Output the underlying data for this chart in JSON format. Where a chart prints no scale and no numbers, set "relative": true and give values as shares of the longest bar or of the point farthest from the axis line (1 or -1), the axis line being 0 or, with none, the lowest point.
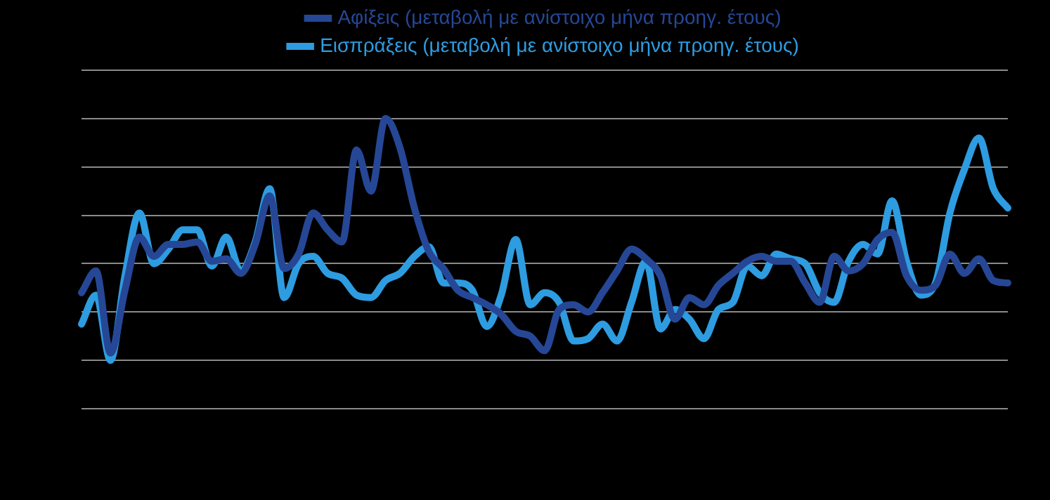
{
  "chart_data": {
    "type": "line",
    "relative": true,
    "grid": "y",
    "legend": "top",
    "marker": "none",
    "line_style": "solid",
    "categories": [
      null,
      null,
      null,
      null,
      null,
      null,
      null,
      null,
      null,
      null,
      null,
      null,
      null,
      null,
      null,
      null,
      null,
      null,
      null,
      null,
      null,
      null,
      null,
      null,
      null,
      null,
      null,
      null,
      null,
      null,
      null,
      null,
      null,
      null,
      null,
      null,
      null,
      null,
      null,
      null,
      null,
      null,
      null,
      null,
      null,
      null,
      null,
      null,
      null,
      null,
      null,
      null,
      null,
      null,
      null,
      null,
      null,
      null,
      null,
      null,
      null,
      null,
      null,
      null,
      null
    ],
    "series": [
      {
        "name": "Αφίξεις (μεταβολή με ανίστοιχο μήνα προηγ. έτους)",
        "color": "#264796",
        "values": [
          0.28,
          0.37,
          0.03,
          0.29,
          0.51,
          0.43,
          0.48,
          0.48,
          0.49,
          0.41,
          0.42,
          0.36,
          0.48,
          0.68,
          0.38,
          0.44,
          0.61,
          0.54,
          0.49,
          0.87,
          0.7,
          1.0,
          0.88,
          0.63,
          0.45,
          0.38,
          0.29,
          0.26,
          0.23,
          0.19,
          0.12,
          0.1,
          0.04,
          0.21,
          0.23,
          0.2,
          0.28,
          0.37,
          0.46,
          0.42,
          0.35,
          0.17,
          0.26,
          0.23,
          0.31,
          0.36,
          0.41,
          0.43,
          0.41,
          0.41,
          0.32,
          0.24,
          0.43,
          0.37,
          0.4,
          0.5,
          0.53,
          0.35,
          0.29,
          0.31,
          0.44,
          0.36,
          0.42,
          0.33,
          0.32
        ]
      },
      {
        "name": "Εισπράξεις (μεταβολή με ανίστοιχο μήνα προηγ. έτους)",
        "color": "#2e9ce0",
        "values": [
          0.15,
          0.27,
          0,
          0.35,
          0.61,
          0.4,
          0.46,
          0.54,
          0.54,
          0.39,
          0.51,
          0.37,
          0.49,
          0.71,
          0.26,
          0.4,
          0.43,
          0.36,
          0.34,
          0.27,
          0.26,
          0.33,
          0.36,
          0.43,
          0.47,
          0.32,
          0.32,
          0.29,
          0.14,
          0.27,
          0.5,
          0.23,
          0.28,
          0.24,
          0.08,
          0.09,
          0.15,
          0.08,
          0.24,
          0.41,
          0.13,
          0.21,
          0.17,
          0.09,
          0.21,
          0.24,
          0.39,
          0.35,
          0.44,
          0.42,
          0.4,
          0.28,
          0.24,
          0.41,
          0.48,
          0.44,
          0.66,
          0.41,
          0.27,
          0.32,
          0.61,
          0.79,
          0.92,
          0.71,
          0.63
        ]
      }
    ]
  }
}
